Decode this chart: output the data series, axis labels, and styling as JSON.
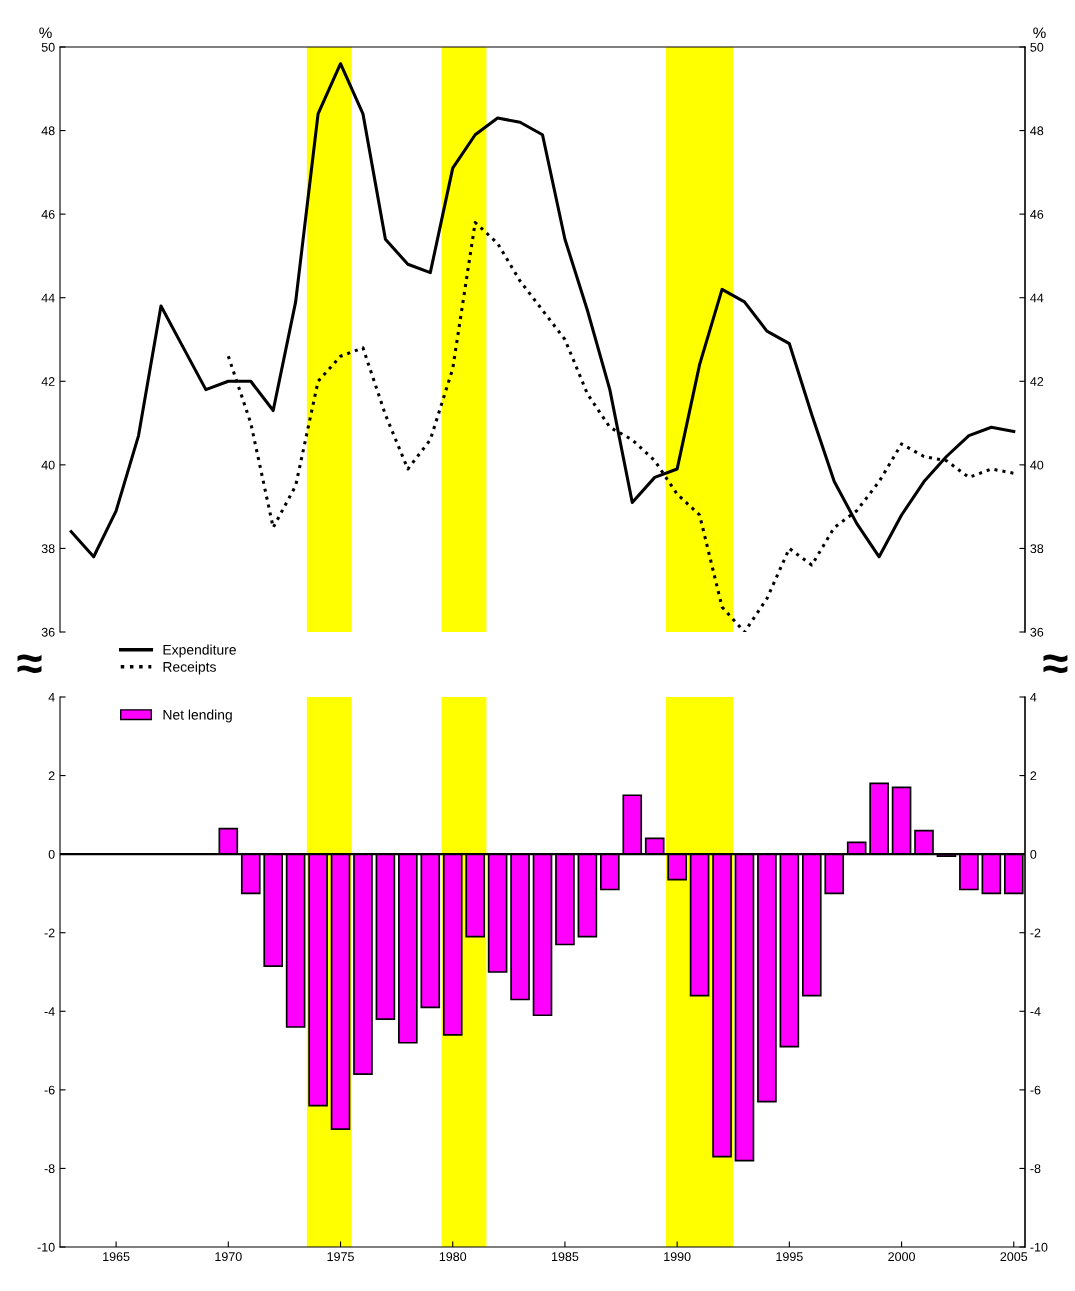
{
  "chart_data": [
    {
      "type": "line",
      "ylabel": "%",
      "y2label": "%",
      "xlim": [
        1962.5,
        2005.5
      ],
      "ylim": [
        36,
        50
      ],
      "yticks": [
        36,
        38,
        40,
        42,
        44,
        46,
        48,
        50
      ],
      "y2lim": [
        36,
        50
      ],
      "y2ticks": [
        36,
        38,
        40,
        42,
        44,
        46,
        48,
        50
      ],
      "tick_labels": "y",
      "legend": "bottom left",
      "grid": false,
      "annotations": [
        "≈",
        "≈"
      ],
      "bands": [
        {
          "axis": "x",
          "from": 1973.5,
          "to": 1975.5,
          "color": "#ffff00"
        },
        {
          "axis": "x",
          "from": 1979.5,
          "to": 1981.5,
          "color": "#ffff00"
        },
        {
          "axis": "x",
          "from": 1989.5,
          "to": 1992.5,
          "color": "#ffff00"
        }
      ],
      "series": [
        {
          "name": "Expenditure",
          "color": "#000000",
          "line_style": "solid",
          "x": [
            1963,
            1964,
            1965,
            1966,
            1967,
            1968,
            1969,
            1970,
            1971,
            1972,
            1973,
            1974,
            1975,
            1976,
            1977,
            1978,
            1979,
            1980,
            1981,
            1982,
            1983,
            1984,
            1985,
            1986,
            1987,
            1988,
            1989,
            1990,
            1991,
            1992,
            1993,
            1994,
            1995,
            1996,
            1997,
            1998,
            1999,
            2000,
            2001,
            2002,
            2003,
            2004,
            2005
          ],
          "values": [
            38.4,
            37.8,
            38.9,
            40.7,
            43.8,
            42.8,
            41.8,
            42.0,
            42.0,
            41.3,
            43.9,
            48.4,
            49.6,
            48.4,
            45.4,
            44.8,
            44.6,
            47.1,
            47.9,
            48.3,
            48.2,
            47.9,
            45.4,
            43.7,
            41.8,
            39.1,
            39.7,
            39.9,
            42.4,
            44.2,
            43.9,
            43.2,
            42.9,
            41.2,
            39.6,
            38.6,
            37.8,
            38.8,
            39.6,
            40.2,
            40.7,
            40.9,
            40.8
          ]
        },
        {
          "name": "Receipts",
          "color": "#000000",
          "line_style": "dotted",
          "x": [
            1970,
            1971,
            1972,
            1973,
            1974,
            1975,
            1976,
            1977,
            1978,
            1979,
            1980,
            1981,
            1982,
            1983,
            1984,
            1985,
            1986,
            1987,
            1988,
            1989,
            1990,
            1991,
            1992,
            1993,
            1994,
            1995,
            1996,
            1997,
            1998,
            1999,
            2000,
            2001,
            2002,
            2003,
            2004,
            2005
          ],
          "values": [
            42.6,
            41.0,
            38.5,
            39.5,
            42.0,
            42.6,
            42.8,
            41.2,
            39.9,
            40.6,
            42.3,
            45.8,
            45.3,
            44.4,
            43.7,
            43.0,
            41.7,
            40.9,
            40.6,
            40.1,
            39.3,
            38.8,
            36.6,
            36.0,
            36.8,
            38.0,
            37.6,
            38.5,
            38.9,
            39.6,
            40.5,
            40.2,
            40.1,
            39.7,
            39.9,
            39.8
          ]
        }
      ]
    },
    {
      "type": "bar",
      "xlim": [
        1962.5,
        2005.5
      ],
      "xticks": [
        1965,
        1970,
        1975,
        1980,
        1985,
        1990,
        1995,
        2000,
        2005
      ],
      "ylim": [
        -10,
        4
      ],
      "yticks": [
        -10,
        -8,
        -6,
        -4,
        -2,
        0,
        2,
        4
      ],
      "y2lim": [
        -10,
        4
      ],
      "y2ticks": [
        -10,
        -8,
        -6,
        -4,
        -2,
        0,
        2,
        4
      ],
      "legend": "top left",
      "grid": false,
      "ref_lines": [
        {
          "axis": "y",
          "value": 0,
          "color": "#000000",
          "line_style": "solid"
        }
      ],
      "bands": [
        {
          "axis": "x",
          "from": 1973.5,
          "to": 1975.5,
          "color": "#ffff00"
        },
        {
          "axis": "x",
          "from": 1979.5,
          "to": 1981.5,
          "color": "#ffff00"
        },
        {
          "axis": "x",
          "from": 1989.5,
          "to": 1992.5,
          "color": "#ffff00"
        }
      ],
      "series": [
        {
          "name": "Net lending",
          "color": "#ff00ff",
          "x": [
            1970,
            1971,
            1972,
            1973,
            1974,
            1975,
            1976,
            1977,
            1978,
            1979,
            1980,
            1981,
            1982,
            1983,
            1984,
            1985,
            1986,
            1987,
            1988,
            1989,
            1990,
            1991,
            1992,
            1993,
            1994,
            1995,
            1996,
            1997,
            1998,
            1999,
            2000,
            2001,
            2002,
            2003,
            2004,
            2005
          ],
          "values": [
            0.65,
            -1.0,
            -2.85,
            -4.4,
            -6.4,
            -7.0,
            -5.6,
            -4.2,
            -4.8,
            -3.9,
            -4.6,
            -2.1,
            -3.0,
            -3.7,
            -4.1,
            -2.3,
            -2.1,
            -0.9,
            1.5,
            0.4,
            -0.65,
            -3.6,
            -7.7,
            -7.8,
            -6.3,
            -4.9,
            -3.6,
            -1.0,
            0.3,
            1.8,
            1.7,
            0.6,
            -0.05,
            -0.9,
            -1.0,
            -1.0
          ]
        }
      ]
    }
  ]
}
